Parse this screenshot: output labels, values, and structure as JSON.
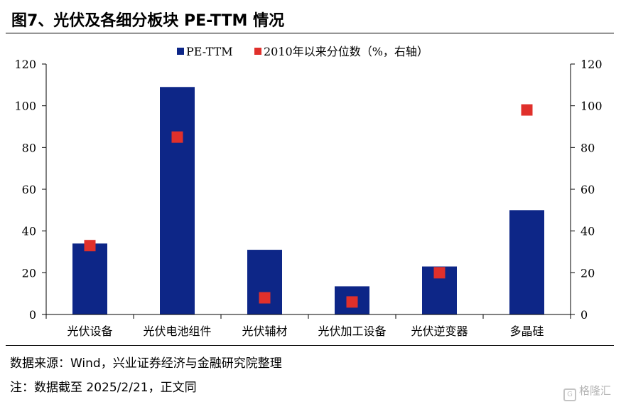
{
  "header": {
    "title": "图7、光伏及各细分板块 PE-TTM 情况"
  },
  "footer": {
    "source": "数据来源：Wind，兴业证券经济与金融研究院整理",
    "note": "注：数据截至 2025/2/21，正文同"
  },
  "watermark": {
    "text": "格隆汇"
  },
  "chart_data": {
    "type": "bar",
    "categories": [
      "光伏设备",
      "光伏电池组件",
      "光伏辅材",
      "光伏加工设备",
      "光伏逆变器",
      "多晶硅"
    ],
    "series": [
      {
        "name": "PE-TTM",
        "type": "bar",
        "axis": "left",
        "color": "#0d2687",
        "values": [
          34,
          109,
          31,
          13.5,
          23,
          50
        ]
      },
      {
        "name": "2010年以来分位数（%，右轴）",
        "type": "scatter",
        "axis": "right",
        "color": "#e0302b",
        "values": [
          33,
          85,
          8,
          6,
          20,
          98
        ]
      }
    ],
    "ylim": [
      0,
      120
    ],
    "y2lim": [
      0,
      120
    ],
    "yticks": [
      "0",
      "20",
      "40",
      "60",
      "80",
      "100",
      "120"
    ],
    "y2ticks": [
      "0",
      "20",
      "40",
      "60",
      "80",
      "100",
      "120"
    ],
    "legend": "top-center",
    "grid": false
  }
}
